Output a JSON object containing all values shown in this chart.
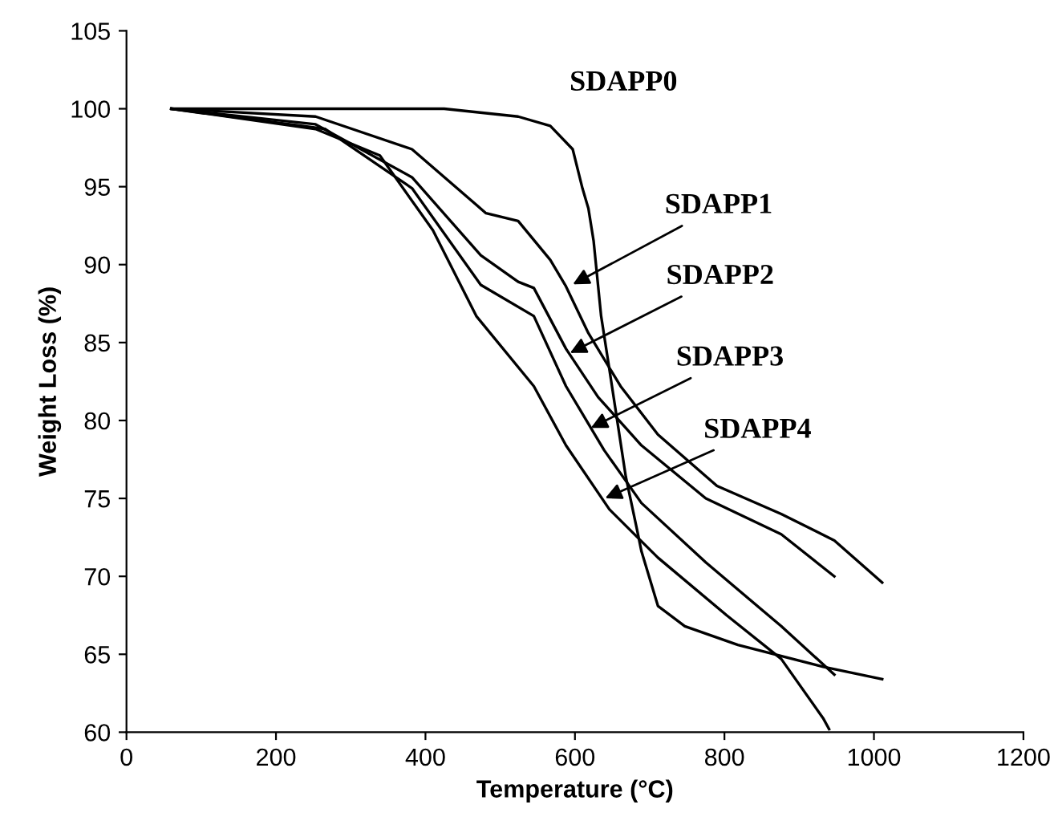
{
  "chart_data": {
    "type": "line",
    "xlabel": "Temperature (°C)",
    "ylabel": "Weight Loss (%)",
    "xlim": [
      0,
      1200
    ],
    "xticks": [
      0,
      200,
      400,
      600,
      800,
      1000,
      1200
    ],
    "ylim": [
      60,
      105
    ],
    "yticks": [
      60,
      65,
      70,
      75,
      80,
      85,
      90,
      95,
      100,
      105
    ],
    "grid": false,
    "marker": "none",
    "line_style": "solid",
    "series": [
      {
        "color": "#000000",
        "x": [
          60,
          200,
          300,
          425,
          524,
          567,
          597,
          610,
          618,
          625,
          635,
          646,
          668,
          683,
          689,
          711,
          747,
          818,
          932,
          1011
        ],
        "values": [
          100,
          100,
          100,
          100,
          99.5,
          98.9,
          97.4,
          94.9,
          93.6,
          91.5,
          86.7,
          83.3,
          76.4,
          73,
          71.6,
          68.1,
          66.8,
          65.6,
          64.2,
          63.4
        ]
      },
      {
        "color": "#000000",
        "x": [
          60,
          253,
          382,
          481,
          524,
          567,
          588,
          618,
          661,
          711,
          790,
          876,
          947,
          1011
        ],
        "values": [
          100,
          99.5,
          97.4,
          93.3,
          92.8,
          90.3,
          88.6,
          85.6,
          82.2,
          79.1,
          75.8,
          74,
          72.3,
          69.6
        ]
      },
      {
        "color": "#000000",
        "x": [
          60,
          253,
          382,
          474,
          524,
          545,
          588,
          631,
          689,
          775,
          876,
          947
        ],
        "values": [
          100,
          99,
          95.6,
          90.6,
          88.9,
          88.5,
          84.6,
          81.5,
          78.4,
          75,
          72.7,
          70
        ]
      },
      {
        "color": "#000000",
        "x": [
          60,
          266,
          382,
          474,
          545,
          588,
          639,
          689,
          775,
          876,
          947
        ],
        "values": [
          100,
          98.7,
          94.9,
          88.7,
          86.7,
          82.2,
          78.1,
          74.7,
          70.9,
          66.8,
          63.7
        ]
      },
      {
        "color": "#000000",
        "x": [
          60,
          253,
          339,
          410,
          468,
          545,
          588,
          646,
          711,
          803,
          876,
          932,
          940
        ],
        "values": [
          100,
          98.7,
          97,
          92.2,
          86.7,
          82.2,
          78.4,
          74.3,
          71.2,
          67.5,
          64.7,
          60.9,
          60.2
        ]
      }
    ],
    "annotations": [
      "SDAPP0",
      {
        "text": "SDAPP1",
        "x": 592,
        "y": 88.6
      },
      {
        "text": "SDAPP2",
        "x": 588,
        "y": 84.2
      },
      {
        "text": "SDAPP3",
        "x": 616,
        "y": 79.4
      },
      {
        "text": "SDAPP4",
        "x": 635,
        "y": 74.9
      }
    ]
  }
}
